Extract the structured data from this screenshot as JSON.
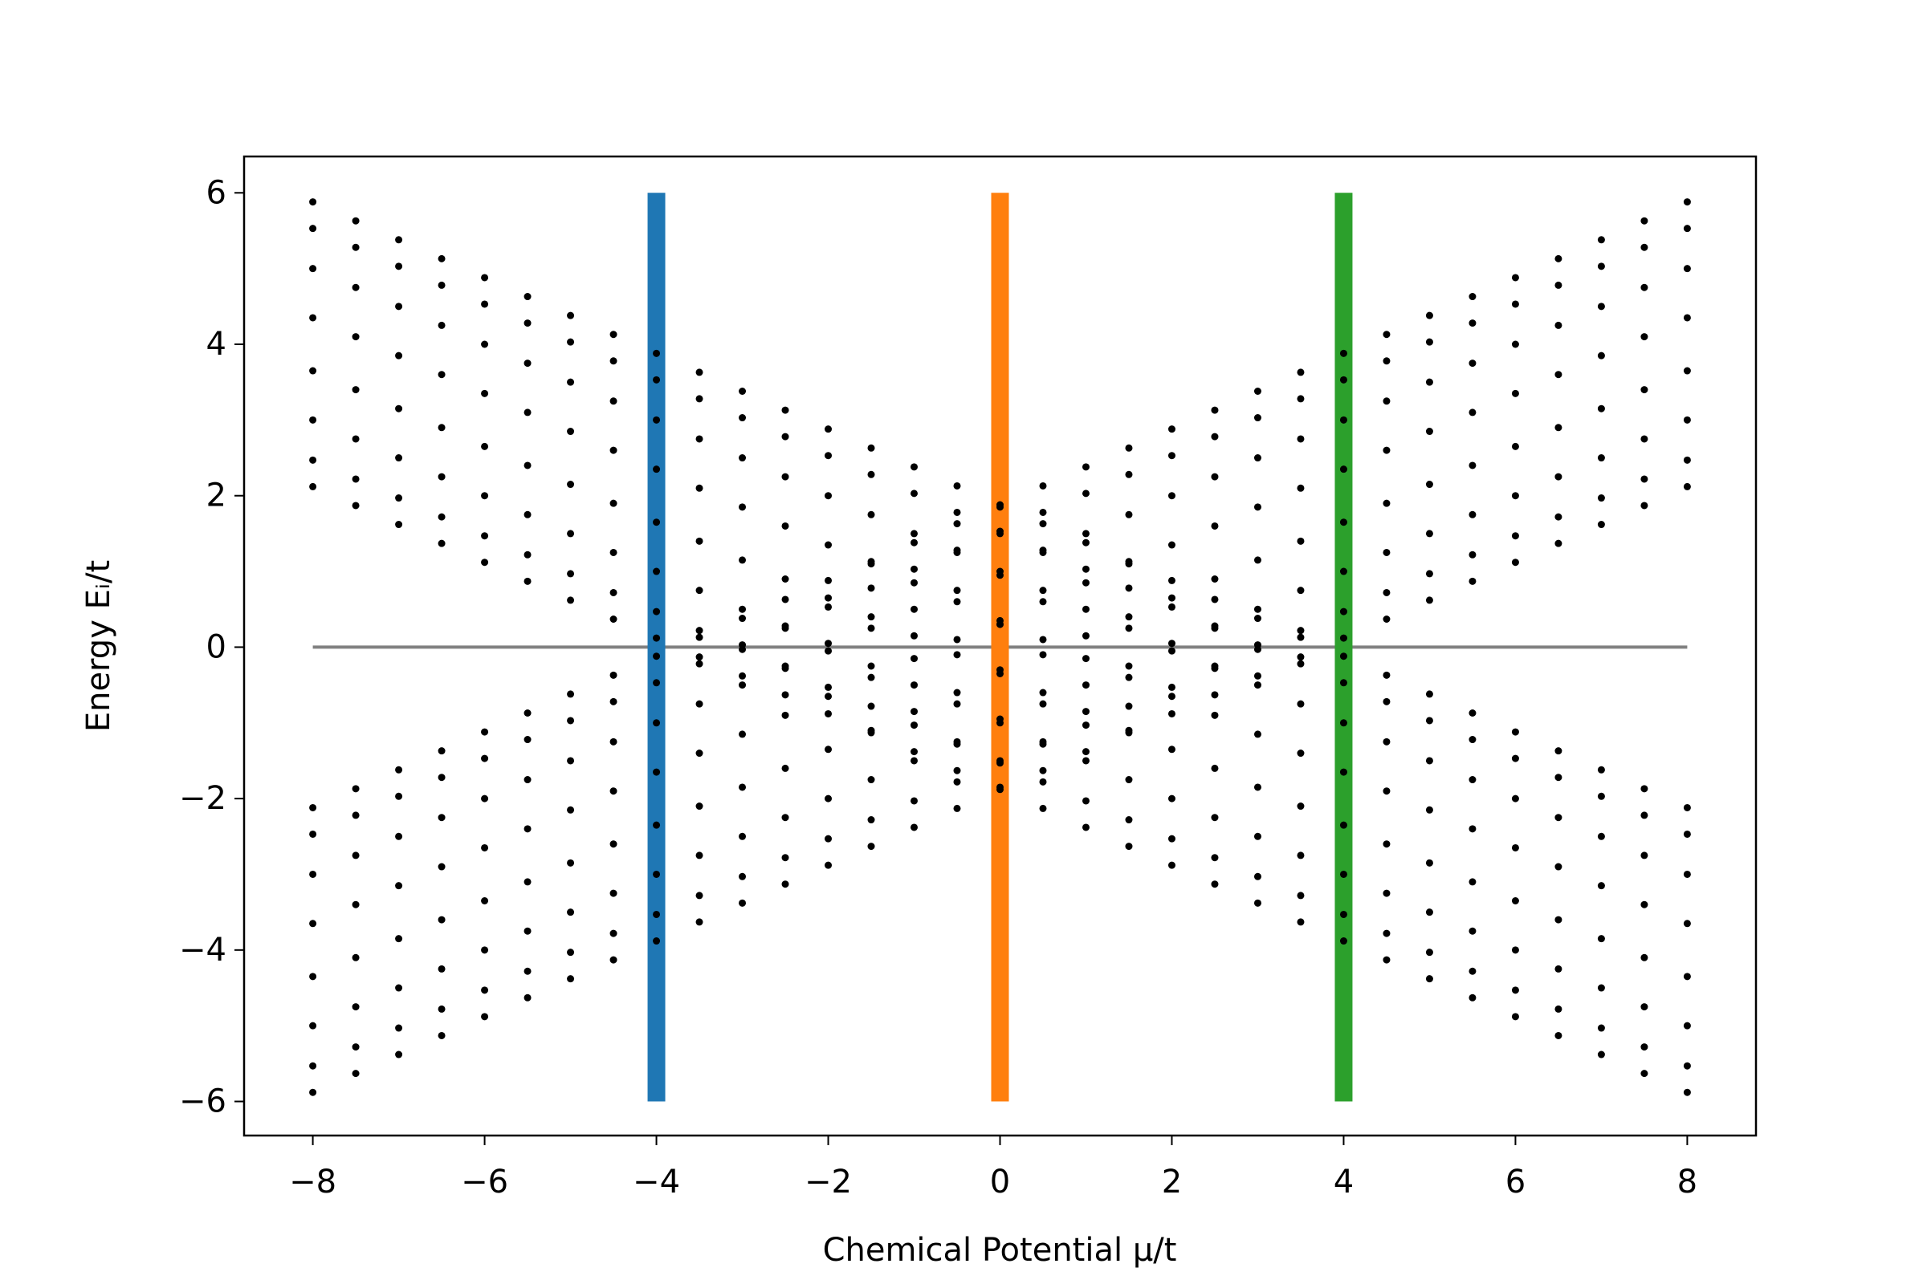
{
  "chart_data": {
    "type": "scatter",
    "xlabel": "Chemical Potential μ/t",
    "ylabel": "Energy Eᵢ/t",
    "xlim": [
      -8.8,
      8.8
    ],
    "ylim": [
      -6.45,
      6.48
    ],
    "xticks": [
      {
        "value": -8,
        "label": "−8"
      },
      {
        "value": -6,
        "label": "−6"
      },
      {
        "value": -4,
        "label": "−4"
      },
      {
        "value": -2,
        "label": "−2"
      },
      0,
      2,
      4,
      6,
      8
    ],
    "yticks": [
      {
        "value": -6,
        "label": "−6"
      },
      {
        "value": -4,
        "label": "−4"
      },
      {
        "value": -2,
        "label": "−2"
      },
      0,
      2,
      4,
      6
    ],
    "color": "#000000",
    "vlines": [
      {
        "x": -4,
        "ymin": -6,
        "ymax": 6,
        "color": "#1f77b4"
      },
      {
        "x": 0,
        "ymin": -6,
        "ymax": 6,
        "color": "#ff7f0e"
      },
      {
        "x": 4,
        "ymin": -6,
        "ymax": 6,
        "color": "#2ca02c"
      }
    ],
    "hline": {
      "y": 0,
      "xmin": -8,
      "xmax": 8,
      "color": "#808080"
    },
    "columns": [
      {
        "x": -8,
        "values": [
          2.12,
          2.47,
          3,
          3.65,
          4.35,
          5,
          5.53,
          5.88,
          -2.12,
          -2.47,
          -3,
          -3.65,
          -4.35,
          -5,
          -5.53,
          -5.88
        ]
      },
      {
        "x": -7.5,
        "values": [
          1.87,
          2.22,
          2.75,
          3.4,
          4.1,
          4.75,
          5.28,
          5.63,
          -1.87,
          -2.22,
          -2.75,
          -3.4,
          -4.1,
          -4.75,
          -5.28,
          -5.63
        ]
      },
      {
        "x": -7,
        "values": [
          1.62,
          1.97,
          2.5,
          3.15,
          3.85,
          4.5,
          5.03,
          5.38,
          -1.62,
          -1.97,
          -2.5,
          -3.15,
          -3.85,
          -4.5,
          -5.03,
          -5.38
        ]
      },
      {
        "x": -6.5,
        "values": [
          1.37,
          1.72,
          2.25,
          2.9,
          3.6,
          4.25,
          4.78,
          5.13,
          -1.37,
          -1.72,
          -2.25,
          -2.9,
          -3.6,
          -4.25,
          -4.78,
          -5.13
        ]
      },
      {
        "x": -6,
        "values": [
          1.12,
          1.47,
          2,
          2.65,
          3.35,
          4,
          4.53,
          4.88,
          -1.12,
          -1.47,
          -2,
          -2.65,
          -3.35,
          -4,
          -4.53,
          -4.88
        ]
      },
      {
        "x": -5.5,
        "values": [
          0.87,
          1.22,
          1.75,
          2.4,
          3.1,
          3.75,
          4.28,
          4.63,
          -0.87,
          -1.22,
          -1.75,
          -2.4,
          -3.1,
          -3.75,
          -4.28,
          -4.63
        ]
      },
      {
        "x": -5,
        "values": [
          0.62,
          0.97,
          1.5,
          2.15,
          2.85,
          3.5,
          4.03,
          4.38,
          -0.62,
          -0.97,
          -1.5,
          -2.15,
          -2.85,
          -3.5,
          -4.03,
          -4.38
        ]
      },
      {
        "x": -4.5,
        "values": [
          0.37,
          0.72,
          1.25,
          1.9,
          2.6,
          3.25,
          3.78,
          4.13,
          -0.37,
          -0.72,
          -1.25,
          -1.9,
          -2.6,
          -3.25,
          -3.78,
          -4.13
        ]
      },
      {
        "x": -4,
        "values": [
          0.12,
          0.47,
          1,
          1.65,
          2.35,
          3,
          3.53,
          3.88,
          -0.12,
          -0.47,
          -1,
          -1.65,
          -2.35,
          -3,
          -3.53,
          -3.88
        ]
      },
      {
        "x": -3.5,
        "values": [
          0.13,
          0.22,
          0.75,
          1.4,
          2.1,
          2.75,
          3.28,
          3.63,
          -0.13,
          -0.22,
          -0.75,
          -1.4,
          -2.1,
          -2.75,
          -3.28,
          -3.63
        ]
      },
      {
        "x": -3,
        "values": [
          0.38,
          0.03,
          0.5,
          1.15,
          1.85,
          2.5,
          3.03,
          3.38,
          -0.38,
          -0.03,
          -0.5,
          -1.15,
          -1.85,
          -2.5,
          -3.03,
          -3.38
        ]
      },
      {
        "x": -2.5,
        "values": [
          0.63,
          0.28,
          0.25,
          0.9,
          1.6,
          2.25,
          2.78,
          3.13,
          -0.63,
          -0.28,
          -0.25,
          -0.9,
          -1.6,
          -2.25,
          -2.78,
          -3.13
        ]
      },
      {
        "x": -2,
        "values": [
          0.88,
          0.53,
          0.05,
          0.65,
          1.35,
          2,
          2.53,
          2.88,
          -0.88,
          -0.53,
          -0.05,
          -0.65,
          -1.35,
          -2,
          -2.53,
          -2.88
        ]
      },
      {
        "x": -1.5,
        "values": [
          1.13,
          0.78,
          0.25,
          0.4,
          1.1,
          1.75,
          2.28,
          2.63,
          -1.13,
          -0.78,
          -0.25,
          -0.4,
          -1.1,
          -1.75,
          -2.28,
          -2.63
        ]
      },
      {
        "x": -1,
        "values": [
          1.38,
          1.03,
          0.5,
          0.15,
          0.85,
          1.5,
          2.03,
          2.38,
          -1.38,
          -1.03,
          -0.5,
          -0.15,
          -0.85,
          -1.5,
          -2.03,
          -2.38
        ]
      },
      {
        "x": -0.5,
        "values": [
          1.63,
          1.28,
          0.75,
          0.1,
          0.6,
          1.25,
          1.78,
          2.13,
          -1.63,
          -1.28,
          -0.75,
          -0.1,
          -0.6,
          -1.25,
          -1.78,
          -2.13
        ]
      },
      {
        "x": 0,
        "values": [
          1.88,
          1.53,
          1,
          0.35,
          0.3,
          0.95,
          1.5,
          1.85,
          -1.88,
          -1.53,
          -1,
          -0.35,
          -0.3,
          -0.95,
          -1.5,
          -1.85
        ]
      },
      {
        "x": 0.5,
        "values": [
          1.63,
          1.28,
          0.75,
          0.1,
          0.6,
          1.25,
          1.78,
          2.13,
          -1.63,
          -1.28,
          -0.75,
          -0.1,
          -0.6,
          -1.25,
          -1.78,
          -2.13
        ]
      },
      {
        "x": 1,
        "values": [
          1.38,
          1.03,
          0.5,
          0.15,
          0.85,
          1.5,
          2.03,
          2.38,
          -1.38,
          -1.03,
          -0.5,
          -0.15,
          -0.85,
          -1.5,
          -2.03,
          -2.38
        ]
      },
      {
        "x": 1.5,
        "values": [
          1.13,
          0.78,
          0.25,
          0.4,
          1.1,
          1.75,
          2.28,
          2.63,
          -1.13,
          -0.78,
          -0.25,
          -0.4,
          -1.1,
          -1.75,
          -2.28,
          -2.63
        ]
      },
      {
        "x": 2,
        "values": [
          0.88,
          0.53,
          0.05,
          0.65,
          1.35,
          2,
          2.53,
          2.88,
          -0.88,
          -0.53,
          -0.05,
          -0.65,
          -1.35,
          -2,
          -2.53,
          -2.88
        ]
      },
      {
        "x": 2.5,
        "values": [
          0.63,
          0.28,
          0.25,
          0.9,
          1.6,
          2.25,
          2.78,
          3.13,
          -0.63,
          -0.28,
          -0.25,
          -0.9,
          -1.6,
          -2.25,
          -2.78,
          -3.13
        ]
      },
      {
        "x": 3,
        "values": [
          0.38,
          0.03,
          0.5,
          1.15,
          1.85,
          2.5,
          3.03,
          3.38,
          -0.38,
          -0.03,
          -0.5,
          -1.15,
          -1.85,
          -2.5,
          -3.03,
          -3.38
        ]
      },
      {
        "x": 3.5,
        "values": [
          0.13,
          0.22,
          0.75,
          1.4,
          2.1,
          2.75,
          3.28,
          3.63,
          -0.13,
          -0.22,
          -0.75,
          -1.4,
          -2.1,
          -2.75,
          -3.28,
          -3.63
        ]
      },
      {
        "x": 4,
        "values": [
          0.12,
          0.47,
          1,
          1.65,
          2.35,
          3,
          3.53,
          3.88,
          -0.12,
          -0.47,
          -1,
          -1.65,
          -2.35,
          -3,
          -3.53,
          -3.88
        ]
      },
      {
        "x": 4.5,
        "values": [
          0.37,
          0.72,
          1.25,
          1.9,
          2.6,
          3.25,
          3.78,
          4.13,
          -0.37,
          -0.72,
          -1.25,
          -1.9,
          -2.6,
          -3.25,
          -3.78,
          -4.13
        ]
      },
      {
        "x": 5,
        "values": [
          0.62,
          0.97,
          1.5,
          2.15,
          2.85,
          3.5,
          4.03,
          4.38,
          -0.62,
          -0.97,
          -1.5,
          -2.15,
          -2.85,
          -3.5,
          -4.03,
          -4.38
        ]
      },
      {
        "x": 5.5,
        "values": [
          0.87,
          1.22,
          1.75,
          2.4,
          3.1,
          3.75,
          4.28,
          4.63,
          -0.87,
          -1.22,
          -1.75,
          -2.4,
          -3.1,
          -3.75,
          -4.28,
          -4.63
        ]
      },
      {
        "x": 6,
        "values": [
          1.12,
          1.47,
          2,
          2.65,
          3.35,
          4,
          4.53,
          4.88,
          -1.12,
          -1.47,
          -2,
          -2.65,
          -3.35,
          -4,
          -4.53,
          -4.88
        ]
      },
      {
        "x": 6.5,
        "values": [
          1.37,
          1.72,
          2.25,
          2.9,
          3.6,
          4.25,
          4.78,
          5.13,
          -1.37,
          -1.72,
          -2.25,
          -2.9,
          -3.6,
          -4.25,
          -4.78,
          -5.13
        ]
      },
      {
        "x": 7,
        "values": [
          1.62,
          1.97,
          2.5,
          3.15,
          3.85,
          4.5,
          5.03,
          5.38,
          -1.62,
          -1.97,
          -2.5,
          -3.15,
          -3.85,
          -4.5,
          -5.03,
          -5.38
        ]
      },
      {
        "x": 7.5,
        "values": [
          1.87,
          2.22,
          2.75,
          3.4,
          4.1,
          4.75,
          5.28,
          5.63,
          -1.87,
          -2.22,
          -2.75,
          -3.4,
          -4.1,
          -4.75,
          -5.28,
          -5.63
        ]
      },
      {
        "x": 8,
        "values": [
          2.12,
          2.47,
          3,
          3.65,
          4.35,
          5,
          5.53,
          5.88,
          -2.12,
          -2.47,
          -3,
          -3.65,
          -4.35,
          -5,
          -5.53,
          -5.88
        ]
      }
    ]
  }
}
